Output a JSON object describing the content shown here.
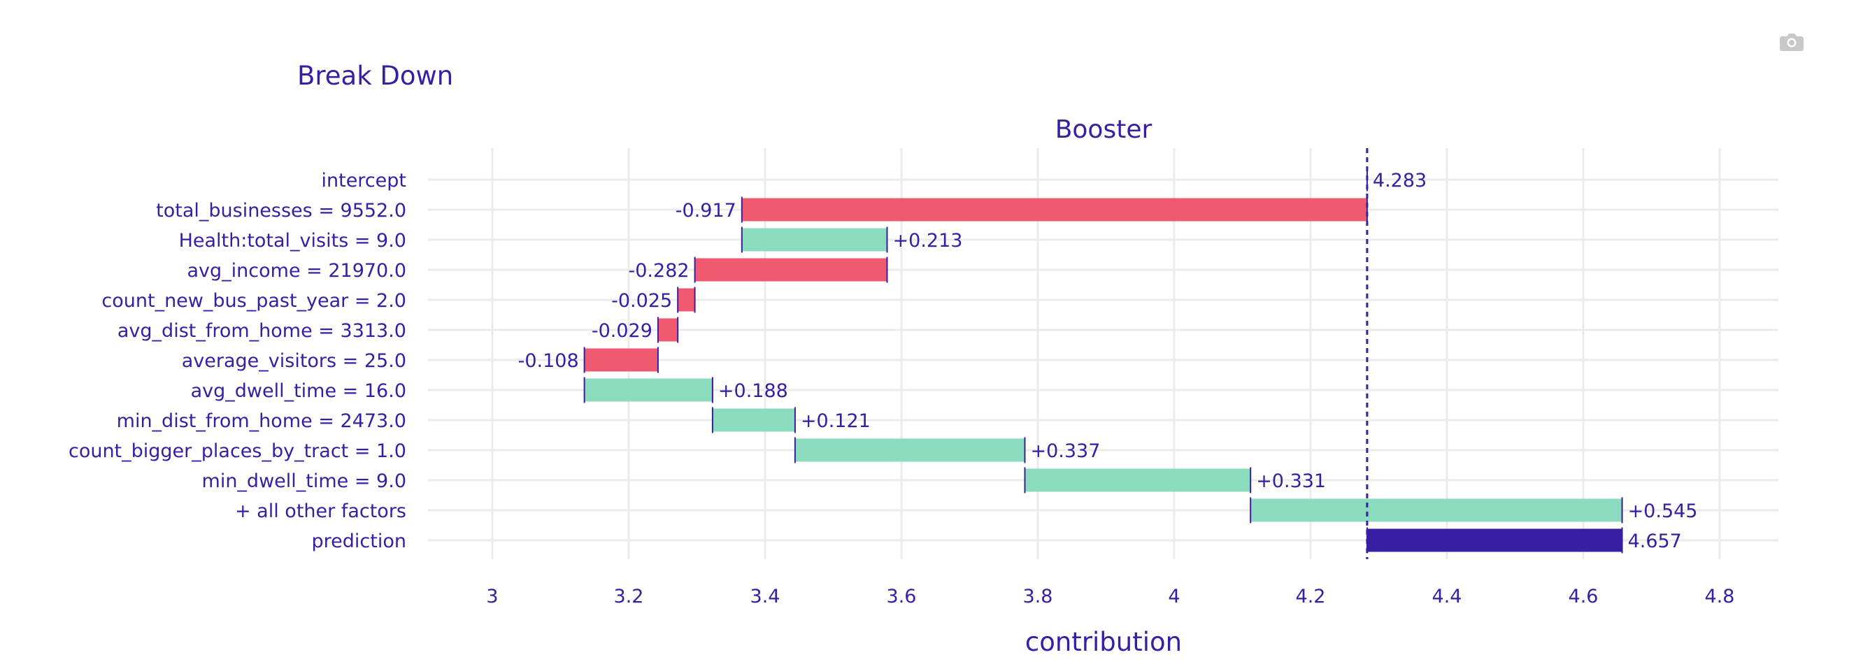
{
  "toolbar": {
    "camera_icon": "camera-icon"
  },
  "chart_data": {
    "type": "bar",
    "subtype": "break-down waterfall",
    "title": "Break Down",
    "subtitle": "Booster",
    "xlabel": "contribution",
    "ylabel": "",
    "xlim": [
      2.9,
      4.88
    ],
    "x_ticks": [
      "3",
      "3.2",
      "3.4",
      "3.6",
      "3.8",
      "4",
      "4.2",
      "4.4",
      "4.6",
      "4.8"
    ],
    "grid": true,
    "legend": "none",
    "intercept": 4.283,
    "prediction": 4.657,
    "colors": {
      "positive": "#8bdcbe",
      "negative": "#f05a71",
      "prediction": "#371ea3",
      "text": "#371ea3"
    },
    "rows": [
      {
        "variable": "intercept",
        "value": 4.283,
        "label": "4.283",
        "kind": "intercept"
      },
      {
        "variable": "total_businesses = 9552.0",
        "value": -0.917,
        "label": "-0.917",
        "kind": "negative"
      },
      {
        "variable": "Health:total_visits = 9.0",
        "value": 0.213,
        "label": "+0.213",
        "kind": "positive"
      },
      {
        "variable": "avg_income = 21970.0",
        "value": -0.282,
        "label": "-0.282",
        "kind": "negative"
      },
      {
        "variable": "count_new_bus_past_year = 2.0",
        "value": -0.025,
        "label": "-0.025",
        "kind": "negative"
      },
      {
        "variable": "avg_dist_from_home = 3313.0",
        "value": -0.029,
        "label": "-0.029",
        "kind": "negative"
      },
      {
        "variable": "average_visitors = 25.0",
        "value": -0.108,
        "label": "-0.108",
        "kind": "negative"
      },
      {
        "variable": "avg_dwell_time = 16.0",
        "value": 0.188,
        "label": "+0.188",
        "kind": "positive"
      },
      {
        "variable": "min_dist_from_home = 2473.0",
        "value": 0.121,
        "label": "+0.121",
        "kind": "positive"
      },
      {
        "variable": "count_bigger_places_by_tract = 1.0",
        "value": 0.337,
        "label": "+0.337",
        "kind": "positive"
      },
      {
        "variable": "min_dwell_time = 9.0",
        "value": 0.331,
        "label": "+0.331",
        "kind": "positive"
      },
      {
        "variable": "+ all other factors",
        "value": 0.545,
        "label": "+0.545",
        "kind": "positive"
      },
      {
        "variable": "prediction",
        "value": 4.657,
        "label": "4.657",
        "kind": "prediction"
      }
    ]
  }
}
